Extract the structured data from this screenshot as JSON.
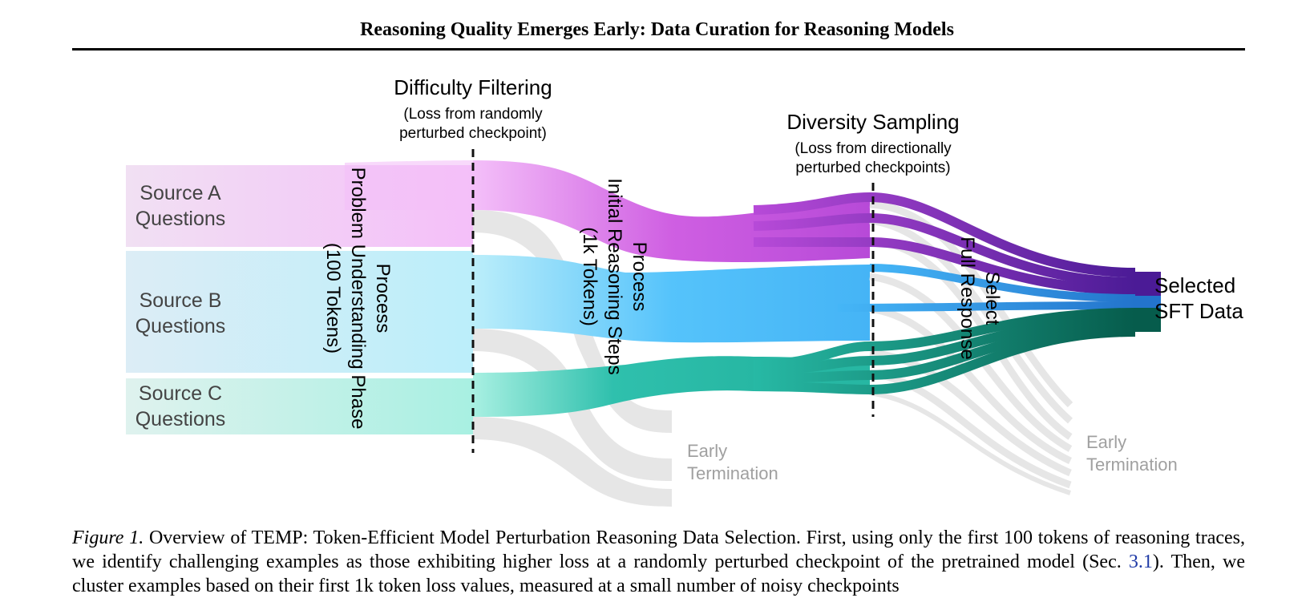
{
  "header": {
    "title": "Reasoning Quality Emerges Early: Data Curation for Reasoning Models"
  },
  "figure": {
    "sources": [
      {
        "line1": "Source A",
        "line2": "Questions"
      },
      {
        "line1": "Source B",
        "line2": "Questions"
      },
      {
        "line1": "Source C",
        "line2": "Questions"
      }
    ],
    "stages": {
      "process_problem": {
        "line1": "Process",
        "line2": "Problem Understanding Phase",
        "line3": "(100 Tokens)"
      },
      "difficulty": {
        "title": "Difficulty Filtering",
        "sub1": "(Loss from randomly",
        "sub2": "perturbed checkpoint)"
      },
      "process_initial": {
        "line1": "Process",
        "line2": "Initial Reasoning Steps",
        "line3": "(1k Tokens)"
      },
      "diversity": {
        "title": "Diversity Sampling",
        "sub1": "(Loss from directionally",
        "sub2": "perturbed checkpoints)"
      },
      "select_full": {
        "line1": "Select",
        "line2": "Full Response"
      }
    },
    "early_termination_1": {
      "line1": "Early",
      "line2": "Termination"
    },
    "early_termination_2": {
      "line1": "Early",
      "line2": "Termination"
    },
    "output": {
      "line1": "Selected",
      "line2": "SFT Data"
    },
    "colors": {
      "source_a": "#f4c2f9",
      "source_b": "#bdeefa",
      "source_c": "#a9f0e3",
      "purple": "#b74ad8",
      "blue": "#45b6f7",
      "teal": "#27b9a5",
      "out_purple": "#4b1b96",
      "out_blue": "#2478cf",
      "out_teal": "#065c4c",
      "grey": "#e6e6e6",
      "grey_text": "#a0a0a0"
    }
  },
  "caption": {
    "label": "Figure 1.",
    "text1": " Overview of TEMP: Token-Efficient Model Perturbation Reasoning Data Selection. First, using only the first 100 tokens of reasoning traces, we identify challenging examples as those exhibiting higher loss at a randomly perturbed checkpoint of the pretrained model (Sec. ",
    "ref": "3.1",
    "text2": "). Then, we cluster examples based on their first 1k token loss values, measured at a small number of noisy checkpoints"
  }
}
